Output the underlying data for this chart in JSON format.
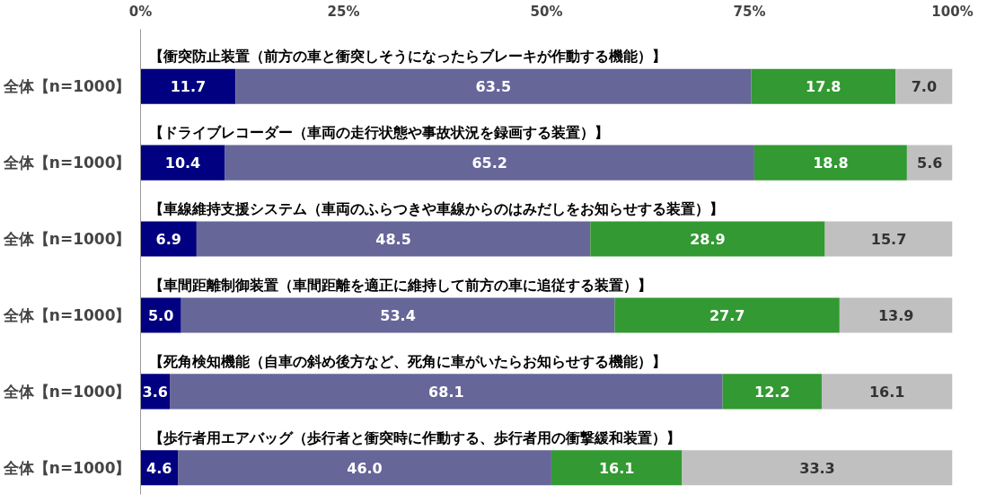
{
  "chart_data": {
    "type": "bar",
    "orientation": "horizontal",
    "stacked": true,
    "grid": false,
    "categories": [
      "全体【n=1000】",
      "全体【n=1000】",
      "全体【n=1000】",
      "全体【n=1000】",
      "全体【n=1000】",
      "全体【n=1000】"
    ],
    "series": [
      {
        "color": "#000080",
        "values": [
          11.7,
          10.4,
          6.9,
          5.0,
          3.6,
          4.6
        ],
        "value_labels": [
          "11.7",
          "10.4",
          "6.9",
          "5.0",
          "3.6",
          "4.6"
        ]
      },
      {
        "color": "#666699",
        "values": [
          63.5,
          65.2,
          48.5,
          53.4,
          68.1,
          46.0
        ],
        "value_labels": [
          "63.5",
          "65.2",
          "48.5",
          "53.4",
          "68.1",
          "46.0"
        ]
      },
      {
        "color": "#339933",
        "values": [
          17.8,
          18.8,
          28.9,
          27.7,
          12.2,
          16.1
        ],
        "value_labels": [
          "17.8",
          "18.8",
          "28.9",
          "27.7",
          "12.2",
          "16.1"
        ]
      },
      {
        "color": "#c0c0c0",
        "values": [
          7.0,
          5.6,
          15.7,
          13.9,
          16.1,
          33.3
        ],
        "value_labels": [
          "7.0",
          "5.6",
          "15.7",
          "13.9",
          "16.1",
          "33.3"
        ]
      }
    ],
    "xlim": [
      0,
      100
    ],
    "xticks": [
      {
        "value": 0,
        "label": "0%"
      },
      {
        "value": 25,
        "label": "25%"
      },
      {
        "value": 50,
        "label": "50%"
      },
      {
        "value": 75,
        "label": "75%"
      },
      {
        "value": 100,
        "label": "100%"
      }
    ],
    "annotations": [
      "【衝突防止装置（前方の車と衝突しそうになったらブレーキが作動する機能）】",
      "【ドライブレコーダー（車両の走行状態や事故状況を録画する装置）】",
      "【車線維持支援システム（車両のふらつきや車線からのはみだしをお知らせする装置）】",
      "【車間距離制御装置（車間距離を適正に維持して前方の車に追従する装置）】",
      "【死角検知機能（自車の斜め後方など、死角に車がいたらお知らせする機能）】",
      "【歩行者用エアバッグ（歩行者と衝突時に作動する、歩行者用の衝撃緩和装置）】"
    ]
  }
}
